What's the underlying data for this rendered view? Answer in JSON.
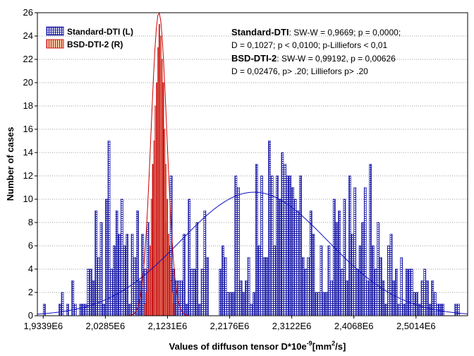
{
  "chart_data": {
    "type": "bar",
    "xlabel": "Values of diffuson tensor D*10e",
    "xlabel_exp": "-9",
    "xlabel_unit_open": "[mm",
    "xlabel_unit_exp": "2",
    "xlabel_unit_close": "/s]",
    "ylabel": "Number of cases",
    "xlim": [
      1925000,
      2580000
    ],
    "ylim": [
      0,
      26
    ],
    "yticks": [
      0,
      2,
      4,
      6,
      8,
      10,
      12,
      14,
      16,
      18,
      20,
      22,
      24,
      26
    ],
    "xticks": [
      {
        "value": 1933900,
        "label": "1,9339E6"
      },
      {
        "value": 2028500,
        "label": "2,0285E6"
      },
      {
        "value": 2123100,
        "label": "2,1231E6"
      },
      {
        "value": 2217600,
        "label": "2,2176E6"
      },
      {
        "value": 2312200,
        "label": "2,3122E6"
      },
      {
        "value": 2406800,
        "label": "2,4068E6"
      },
      {
        "value": 2501400,
        "label": "2,5014E6"
      }
    ],
    "grid": true,
    "legend_position": "top-left",
    "series": [
      {
        "name": "Standard-DTI (L)",
        "color": "#1f1fa8",
        "bin_start": 1933900,
        "bin_width": 3940,
        "values": [
          1,
          0,
          0,
          0,
          0,
          0,
          1,
          2,
          0,
          1,
          0,
          3,
          1,
          0,
          1,
          1,
          1,
          4,
          4,
          3,
          9,
          5,
          8,
          1,
          10,
          15,
          4,
          6,
          9,
          7,
          10,
          6,
          7,
          1,
          7,
          5,
          9,
          3,
          7,
          4,
          8,
          4,
          5,
          8,
          3,
          0,
          11,
          8,
          6,
          12,
          4,
          3,
          3,
          3,
          7,
          1,
          10,
          4,
          4,
          8,
          1,
          4,
          9,
          5,
          0,
          0,
          0,
          0,
          4,
          6,
          5,
          2,
          2,
          2,
          12,
          11,
          3,
          2,
          3,
          5,
          1,
          2,
          13,
          6,
          12,
          5,
          5,
          15,
          12,
          6,
          12,
          10,
          14,
          13,
          12,
          12,
          11,
          10,
          9,
          12,
          5,
          4,
          5,
          9,
          7,
          2,
          2,
          6,
          2,
          2,
          6,
          3,
          10,
          8,
          9,
          4,
          10,
          3,
          12,
          7,
          11,
          4,
          6,
          8,
          11,
          3,
          13,
          6,
          4,
          8,
          5,
          3,
          1,
          6,
          7,
          3,
          4,
          1,
          5,
          1,
          4,
          4,
          4,
          2,
          2,
          1,
          3,
          4,
          3,
          1,
          3,
          2,
          1,
          1,
          1,
          0,
          0,
          0,
          0,
          1,
          1
        ]
      },
      {
        "name": "BSD-DTI-2 (R)",
        "color": "#cc1818",
        "bin_start": 2088000,
        "bin_width": 2000,
        "values": [
          1,
          2,
          4,
          4,
          6,
          10,
          13,
          15,
          18,
          20,
          23,
          25,
          24,
          22,
          20,
          16,
          13,
          10,
          7,
          5,
          3,
          2,
          1
        ]
      }
    ],
    "fits": [
      {
        "series": "Standard-DTI (L)",
        "type": "normal",
        "mean": 2255000,
        "sd": 112000,
        "peak": 10.6,
        "color": "#1010c0"
      },
      {
        "series": "BSD-DTI-2 (R)",
        "type": "normal",
        "mean": 2110000,
        "sd": 12000,
        "peak": 26,
        "color": "#cc0000"
      }
    ]
  },
  "annotations": {
    "std_head": "Standard-DTI",
    "std_line1": ":   SW-W = 0,9669; p = 0,0000;",
    "std_line2": "D = 0,1027; p < 0,0100; p-Lilliefors < 0,01",
    "bsd_head": "BSD-DTI-2",
    "bsd_line1": ":   SW-W = 0,99192, p = 0,00626",
    "bsd_line2": "D = 0,02476, p> .20; Lilliefors p> .20"
  }
}
